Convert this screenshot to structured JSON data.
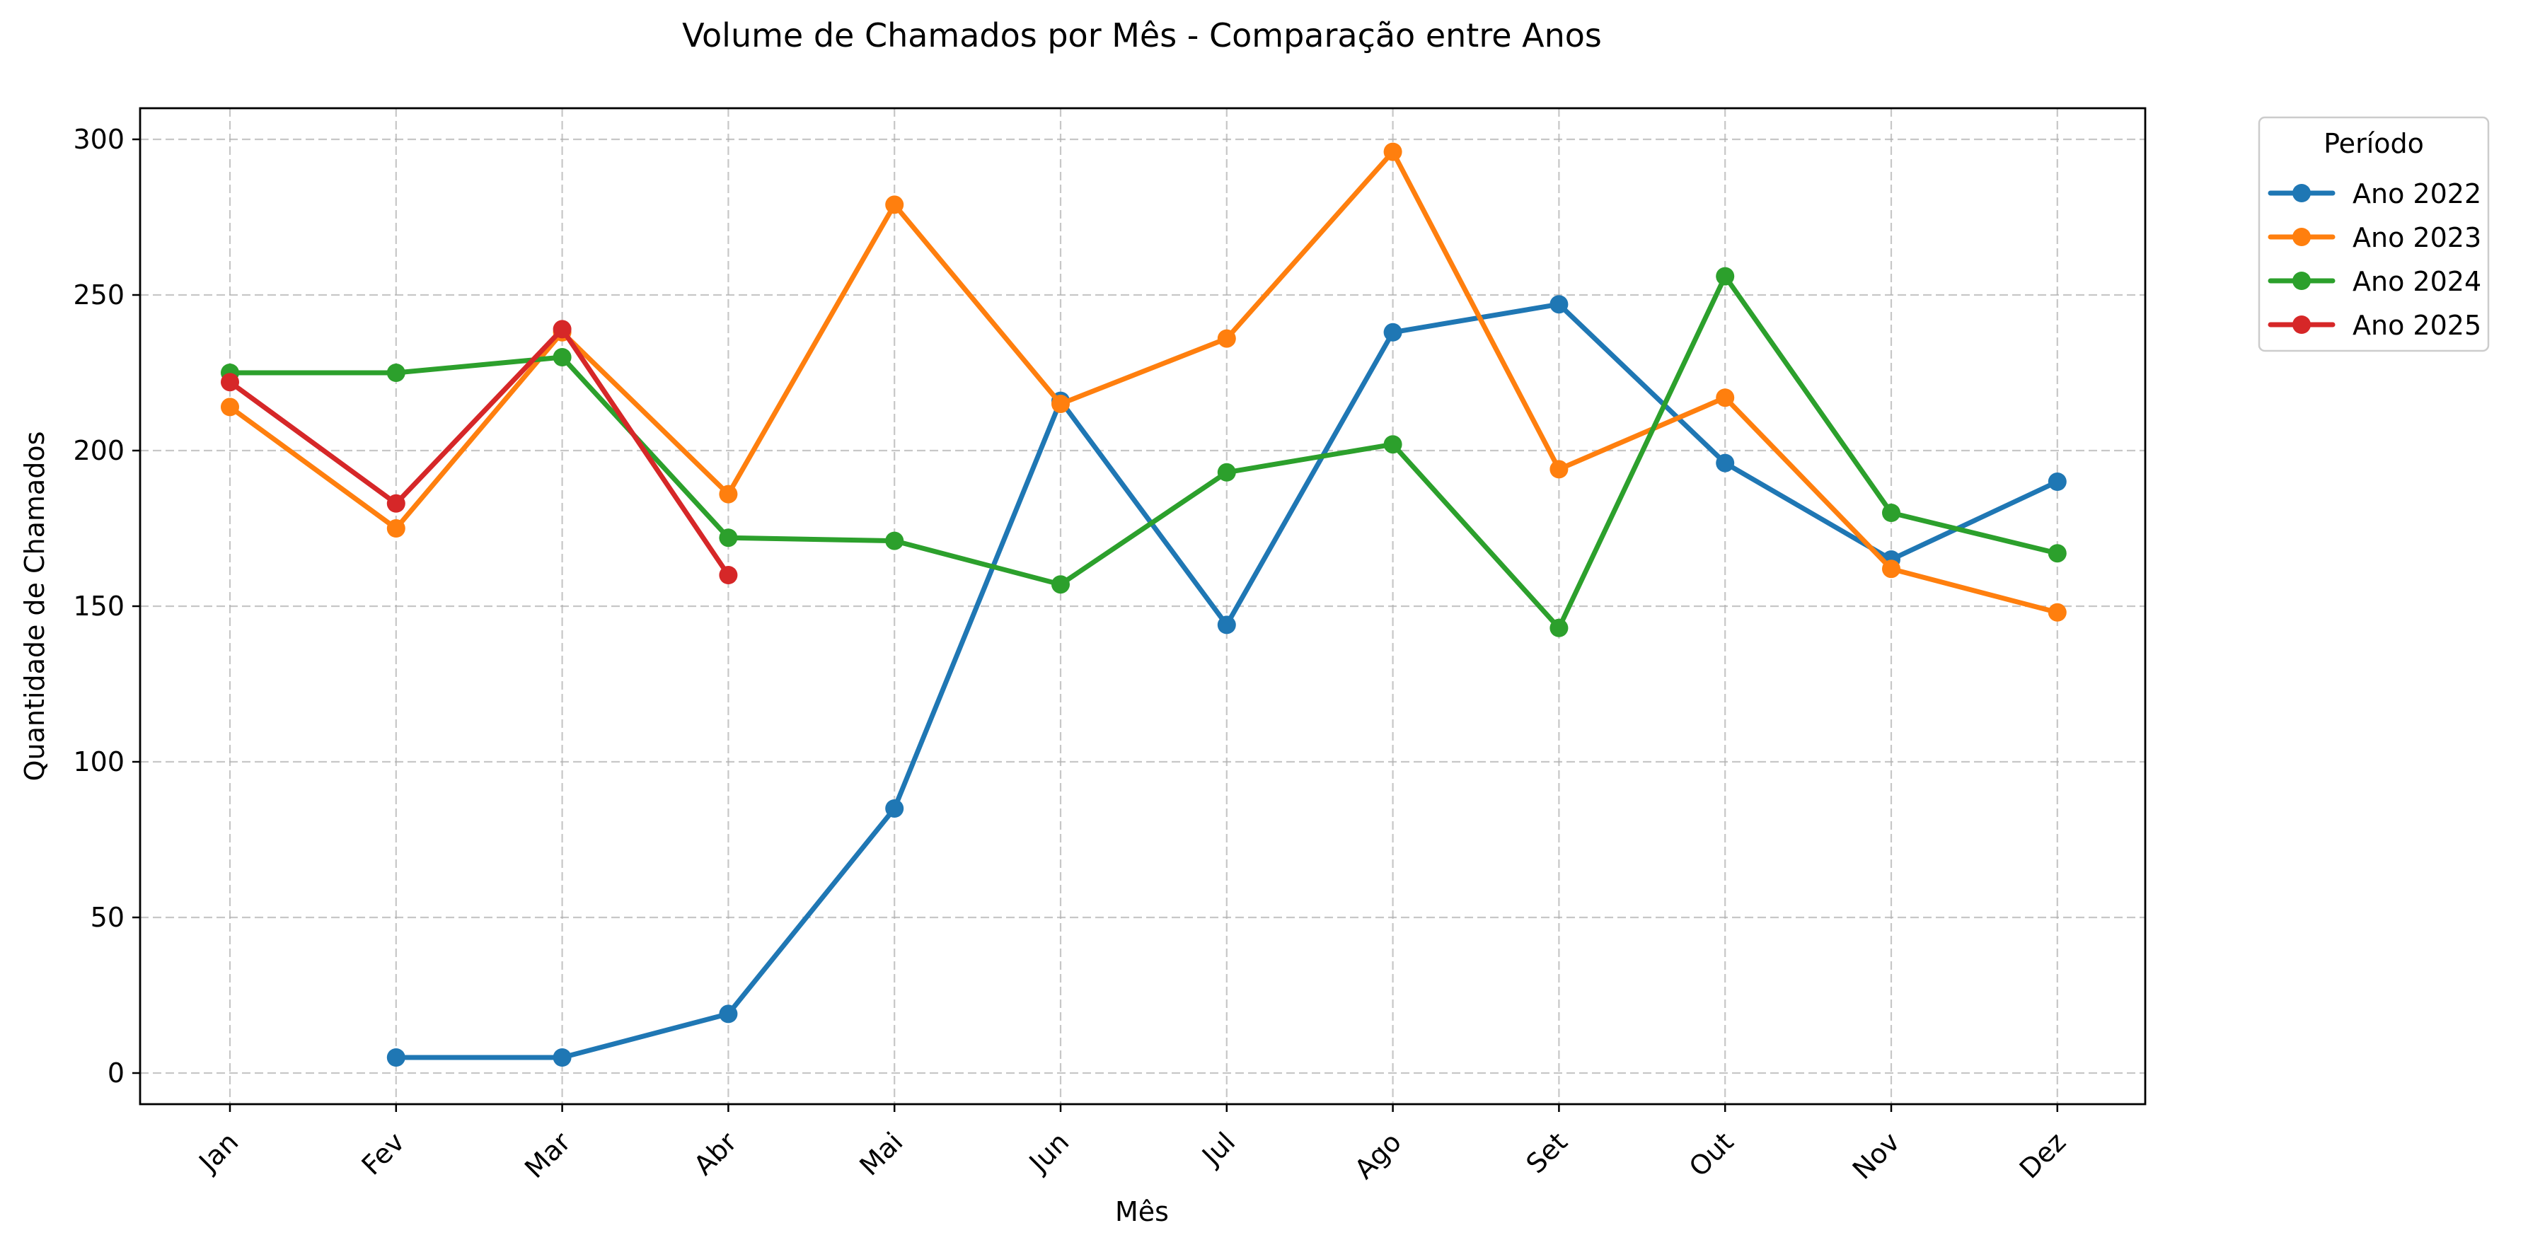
{
  "chart_data": {
    "type": "line",
    "title": "Volume de Chamados por Mês - Comparação entre Anos",
    "xlabel": "Mês",
    "ylabel": "Quantidade de Chamados",
    "categories": [
      "Jan",
      "Fev",
      "Mar",
      "Abr",
      "Mai",
      "Jun",
      "Jul",
      "Ago",
      "Set",
      "Out",
      "Nov",
      "Dez"
    ],
    "ylim": [
      -10,
      310
    ],
    "yticks": [
      0,
      50,
      100,
      150,
      200,
      250,
      300
    ],
    "grid": true,
    "legend": {
      "title": "Período",
      "placement": "outside-top-right"
    },
    "series": [
      {
        "name": "Ano 2022",
        "color": "#1f77b4",
        "values": [
          null,
          5,
          5,
          19,
          85,
          216,
          144,
          238,
          247,
          196,
          165,
          190
        ]
      },
      {
        "name": "Ano 2023",
        "color": "#ff7f0e",
        "values": [
          214,
          175,
          238,
          186,
          279,
          215,
          236,
          296,
          194,
          217,
          162,
          148
        ]
      },
      {
        "name": "Ano 2024",
        "color": "#2ca02c",
        "values": [
          225,
          225,
          230,
          172,
          171,
          157,
          193,
          202,
          143,
          256,
          180,
          167
        ]
      },
      {
        "name": "Ano 2025",
        "color": "#d62728",
        "values": [
          222,
          183,
          239,
          160,
          null,
          null,
          null,
          null,
          null,
          null,
          null,
          null
        ]
      }
    ]
  }
}
